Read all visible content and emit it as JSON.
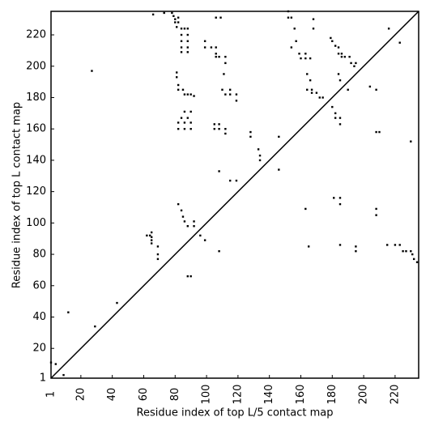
{
  "chart_data": {
    "type": "scatter",
    "x_label": "Residue index of top L/5 contact map",
    "y_label": "Residue index of top L contact map",
    "xlim": [
      1,
      235
    ],
    "ylim": [
      1,
      235
    ],
    "xticks": [
      1,
      20,
      40,
      60,
      80,
      100,
      120,
      140,
      160,
      180,
      200,
      220
    ],
    "yticks": [
      1,
      20,
      40,
      60,
      80,
      100,
      120,
      140,
      160,
      180,
      200,
      220
    ],
    "color": "#000000",
    "x": [
      1,
      4,
      9,
      12,
      27,
      29,
      43,
      62,
      64,
      65,
      65,
      65,
      65,
      69,
      69,
      69,
      66,
      73,
      78,
      79,
      80,
      80,
      82,
      82,
      81,
      81,
      81,
      82,
      82,
      84,
      86,
      88,
      84,
      88,
      84,
      88,
      84,
      88,
      84,
      88,
      85,
      86,
      88,
      90,
      92,
      86,
      90,
      84,
      88,
      82,
      82,
      86,
      86,
      90,
      90,
      82,
      84,
      85,
      86,
      88,
      92,
      92,
      88,
      90,
      96,
      99,
      99,
      99,
      103,
      106,
      106,
      106,
      108,
      112,
      112,
      106,
      109,
      110,
      112,
      115,
      115,
      119,
      119,
      105,
      105,
      108,
      108,
      112,
      112,
      108,
      108,
      111,
      115,
      119,
      128,
      128,
      133,
      134,
      134,
      146,
      146,
      152,
      152,
      154,
      154,
      156,
      157,
      159,
      160,
      163,
      163,
      166,
      163,
      165,
      164,
      166,
      164,
      167,
      167,
      170,
      172,
      174,
      168,
      168,
      179,
      180,
      182,
      184,
      184,
      186,
      186,
      188,
      191,
      192,
      194,
      195,
      184,
      185,
      190,
      180,
      182,
      182,
      185,
      185,
      181,
      185,
      185,
      185,
      195,
      195,
      204,
      208,
      208,
      210,
      208,
      208,
      216,
      215,
      220,
      223,
      225,
      227,
      230,
      231,
      232,
      234,
      230,
      223
    ],
    "y": [
      11,
      10,
      3,
      43,
      197,
      34,
      49,
      92,
      92,
      94,
      91,
      89,
      87,
      85,
      80,
      77,
      233,
      234,
      234,
      232,
      230,
      228,
      231,
      228,
      225,
      196,
      193,
      188,
      185,
      224,
      224,
      224,
      220,
      220,
      216,
      216,
      212,
      212,
      209,
      209,
      185,
      182,
      182,
      182,
      181,
      171,
      171,
      167,
      167,
      164,
      160,
      160,
      164,
      160,
      164,
      112,
      108,
      104,
      101,
      98,
      101,
      98,
      66,
      66,
      92,
      89,
      216,
      212,
      212,
      212,
      208,
      206,
      206,
      206,
      202,
      231,
      231,
      185,
      182,
      185,
      182,
      182,
      178,
      163,
      160,
      163,
      160,
      160,
      157,
      133,
      82,
      195,
      127,
      127,
      158,
      155,
      147,
      143,
      140,
      155,
      134,
      235,
      231,
      231,
      212,
      224,
      216,
      208,
      205,
      208,
      205,
      205,
      109,
      85,
      195,
      191,
      185,
      185,
      183,
      183,
      180,
      180,
      230,
      224,
      218,
      216,
      213,
      212,
      208,
      206,
      208,
      206,
      206,
      202,
      200,
      202,
      195,
      191,
      185,
      174,
      170,
      167,
      167,
      163,
      116,
      116,
      112,
      86,
      85,
      82,
      187,
      185,
      158,
      158,
      109,
      105,
      224,
      86,
      86,
      86,
      82,
      82,
      82,
      80,
      77,
      75,
      152,
      215
    ]
  }
}
